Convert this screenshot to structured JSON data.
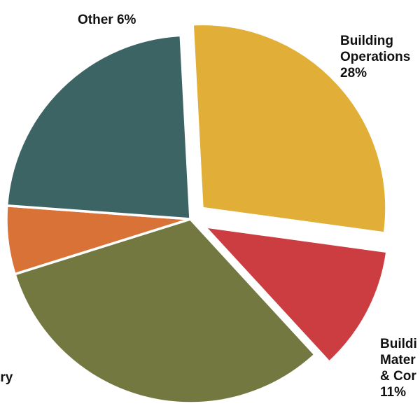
{
  "chart_data": {
    "type": "pie",
    "slices": [
      {
        "label_lines": [
          "Building",
          "Operations",
          "28%"
        ],
        "value": 28,
        "color": "#E1AE38",
        "exploded": true
      },
      {
        "label_lines": [
          "Buildi",
          "Mater",
          "& Cor",
          "11%"
        ],
        "value": 11,
        "color": "#CC3D42",
        "exploded": true
      },
      {
        "label_lines": [
          "try"
        ],
        "value": 32,
        "color": "#737841",
        "exploded": false
      },
      {
        "label_lines": [
          "Other 6%"
        ],
        "value": 6,
        "color": "#D97236",
        "exploded": false
      },
      {
        "label_lines": [],
        "value": 23,
        "color": "#3D6464",
        "exploded": false
      }
    ],
    "legend": "none"
  }
}
